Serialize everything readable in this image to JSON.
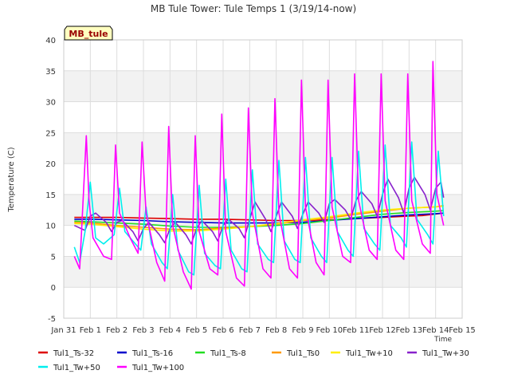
{
  "chart_data": {
    "type": "line",
    "title": "MB Tule Tower: Tule Temps 1 (3/19/14-now)",
    "xlabel": "Time",
    "ylabel": "Temperature (C)",
    "site_label": "MB_tule",
    "xlim": [
      0,
      15
    ],
    "ylim": [
      -5,
      40
    ],
    "grid": true,
    "legend_position": "bottom",
    "x_tick_values": [
      0,
      1,
      2,
      3,
      4,
      5,
      6,
      7,
      8,
      9,
      10,
      11,
      12,
      13,
      14,
      15
    ],
    "x_tick_labels": [
      "Jan 31",
      "Feb 1",
      "Feb 2",
      "Feb 3",
      "Feb 4",
      "Feb 5",
      "Feb 6",
      "Feb 7",
      "Feb 8",
      "Feb 9",
      "Feb 10",
      "Feb 11",
      "Feb 12",
      "Feb 13",
      "Feb 14",
      "Feb 15"
    ],
    "y_ticks": [
      -5,
      0,
      5,
      10,
      15,
      20,
      25,
      30,
      35,
      40
    ],
    "series": [
      {
        "name": "Tul1_Ts-32",
        "color": "#dd0000",
        "x": [
          0.4,
          1,
          2,
          3,
          4,
          5,
          6,
          7,
          8,
          9,
          10,
          11,
          12,
          13,
          13.5,
          14.3
        ],
        "y": [
          11.3,
          11.3,
          11.3,
          11.2,
          11.1,
          11.0,
          11.0,
          10.9,
          10.8,
          10.8,
          10.9,
          11.1,
          11.3,
          11.5,
          11.6,
          12.0
        ]
      },
      {
        "name": "Tul1_Ts-16",
        "color": "#0000cc",
        "x": [
          0.4,
          1,
          2,
          3,
          4,
          5,
          6,
          7,
          8,
          9,
          10,
          11,
          12,
          13,
          14,
          14.3
        ],
        "y": [
          11.0,
          11.0,
          10.9,
          10.8,
          10.6,
          10.5,
          10.4,
          10.4,
          10.4,
          10.5,
          10.8,
          11.1,
          11.4,
          11.7,
          11.9,
          12.0
        ]
      },
      {
        "name": "Tul1_Ts-8",
        "color": "#22dd22",
        "x": [
          0.4,
          1,
          2,
          3,
          4,
          5,
          6,
          7,
          8,
          9,
          10,
          11,
          12,
          13,
          14,
          14.3
        ],
        "y": [
          10.7,
          10.6,
          10.4,
          10.2,
          9.9,
          9.7,
          9.7,
          9.8,
          10.0,
          10.3,
          10.8,
          11.3,
          11.8,
          12.1,
          12.3,
          12.4
        ]
      },
      {
        "name": "Tul1_Ts0",
        "color": "#ff9900",
        "x": [
          0.4,
          1,
          2,
          3,
          4,
          5,
          6,
          7,
          8,
          9,
          10,
          11,
          12,
          13,
          14,
          14.3
        ],
        "y": [
          10.5,
          10.4,
          10.0,
          9.7,
          9.4,
          9.3,
          9.6,
          9.8,
          10.2,
          10.8,
          11.2,
          11.8,
          12.3,
          12.8,
          13.0,
          13.2
        ]
      },
      {
        "name": "Tul1_Tw+10",
        "color": "#ffee00",
        "x": [
          0.4,
          1,
          2,
          3,
          4,
          5,
          6,
          7,
          8,
          9,
          10,
          11,
          12,
          13,
          14,
          14.3
        ],
        "y": [
          10.3,
          10.2,
          9.8,
          9.4,
          9.1,
          9.1,
          9.4,
          9.8,
          10.3,
          10.9,
          11.4,
          12.0,
          12.5,
          12.8,
          13.0,
          13.1
        ]
      },
      {
        "name": "Tul1_Tw+30",
        "color": "#8822cc",
        "x": [
          0.4,
          0.8,
          1.0,
          1.2,
          1.6,
          1.8,
          2.0,
          2.2,
          2.6,
          2.8,
          3.0,
          3.2,
          3.6,
          3.8,
          4.0,
          4.2,
          4.6,
          4.8,
          5.0,
          5.2,
          5.6,
          5.8,
          6.0,
          6.2,
          6.6,
          6.8,
          7.0,
          7.2,
          7.6,
          7.8,
          8.0,
          8.2,
          8.6,
          8.8,
          9.0,
          9.2,
          9.6,
          9.8,
          10.0,
          10.2,
          10.6,
          10.8,
          11.0,
          11.2,
          11.6,
          11.8,
          12.0,
          12.2,
          12.6,
          12.8,
          13.0,
          13.2,
          13.6,
          13.8,
          14.0,
          14.2,
          14.3
        ],
        "y": [
          10.0,
          9.2,
          11.5,
          12.0,
          10.5,
          9.0,
          10.5,
          10.8,
          9.0,
          7.5,
          9.5,
          10.5,
          8.5,
          7.2,
          9.5,
          10.5,
          8.5,
          7.0,
          9.5,
          10.8,
          9.0,
          7.5,
          10.0,
          11.0,
          9.5,
          8.0,
          11.0,
          13.8,
          11.0,
          9.0,
          11.5,
          13.8,
          11.5,
          9.5,
          11.8,
          13.8,
          12.0,
          10.5,
          13.5,
          14.2,
          12.5,
          11.0,
          14.0,
          15.5,
          13.5,
          11.5,
          15.0,
          17.5,
          14.5,
          12.0,
          16.0,
          17.8,
          15.0,
          12.5,
          16.0,
          17.0,
          14.5
        ]
      },
      {
        "name": "Tul1_Tw+50",
        "color": "#00eeee",
        "x": [
          0.4,
          0.6,
          0.8,
          1.0,
          1.2,
          1.5,
          1.9,
          2.1,
          2.3,
          2.6,
          2.9,
          3.1,
          3.3,
          3.7,
          3.9,
          4.1,
          4.3,
          4.7,
          4.9,
          5.1,
          5.3,
          5.7,
          5.9,
          6.1,
          6.3,
          6.7,
          6.9,
          7.1,
          7.3,
          7.7,
          7.9,
          8.1,
          8.3,
          8.7,
          8.9,
          9.1,
          9.3,
          9.7,
          9.9,
          10.1,
          10.3,
          10.7,
          10.9,
          11.1,
          11.3,
          11.7,
          11.9,
          12.1,
          12.3,
          12.7,
          12.9,
          13.1,
          13.3,
          13.7,
          13.9,
          14.1,
          14.3
        ],
        "y": [
          6.5,
          4.0,
          9.0,
          17.0,
          8.0,
          7.0,
          8.5,
          16.0,
          9.0,
          7.5,
          6.0,
          13.0,
          7.0,
          4.0,
          3.0,
          15.0,
          6.0,
          2.5,
          2.0,
          16.5,
          5.5,
          3.5,
          3.0,
          17.5,
          6.0,
          3.0,
          2.5,
          19.0,
          7.0,
          4.5,
          4.0,
          20.5,
          7.5,
          4.5,
          4.0,
          21.0,
          8.0,
          5.0,
          4.0,
          21.0,
          9.0,
          6.0,
          5.0,
          22.0,
          9.5,
          7.0,
          6.0,
          23.0,
          10.0,
          8.0,
          6.5,
          23.5,
          11.0,
          8.5,
          7.0,
          22.0,
          11.5
        ]
      },
      {
        "name": "Tul1_Tw+100",
        "color": "#ff00ff",
        "x": [
          0.4,
          0.6,
          0.85,
          0.95,
          1.1,
          1.5,
          1.8,
          1.95,
          2.1,
          2.5,
          2.8,
          2.95,
          3.1,
          3.5,
          3.8,
          3.95,
          4.1,
          4.5,
          4.8,
          4.95,
          5.1,
          5.5,
          5.8,
          5.95,
          6.1,
          6.5,
          6.8,
          6.95,
          7.1,
          7.5,
          7.8,
          7.95,
          8.1,
          8.5,
          8.8,
          8.95,
          9.1,
          9.5,
          9.8,
          9.95,
          10.1,
          10.5,
          10.8,
          10.95,
          11.1,
          11.5,
          11.8,
          11.95,
          12.1,
          12.5,
          12.8,
          12.95,
          13.1,
          13.5,
          13.8,
          13.9,
          14.05,
          14.3
        ],
        "y": [
          5.0,
          3.0,
          24.5,
          14.0,
          8.0,
          5.0,
          4.5,
          23.0,
          12.0,
          8.0,
          5.5,
          23.5,
          12.0,
          4.0,
          1.0,
          26.0,
          10.0,
          2.5,
          -0.3,
          24.5,
          9.0,
          3.0,
          2.0,
          28.0,
          9.0,
          1.5,
          0.2,
          29.0,
          12.0,
          3.0,
          1.5,
          30.5,
          12.0,
          3.0,
          1.5,
          33.5,
          13.0,
          4.0,
          2.0,
          33.5,
          13.0,
          5.0,
          4.0,
          34.5,
          14.0,
          6.0,
          4.5,
          34.5,
          14.0,
          6.0,
          4.5,
          34.5,
          14.0,
          7.0,
          5.5,
          36.5,
          15.0,
          10.0
        ]
      }
    ]
  }
}
